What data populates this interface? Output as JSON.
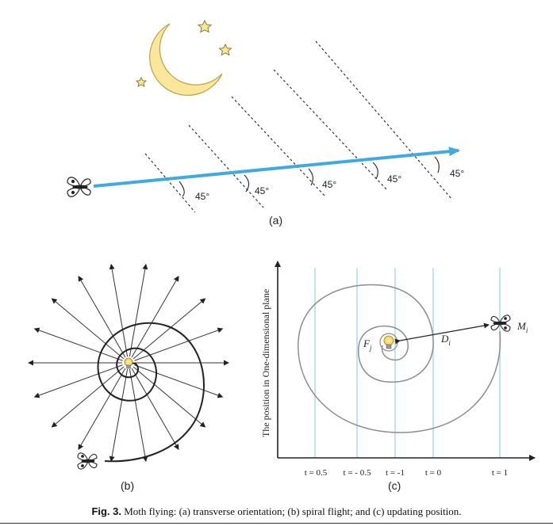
{
  "panel_a": {
    "angles": [
      "45°",
      "45°",
      "45°",
      "45°",
      "45°"
    ],
    "label": "(a)"
  },
  "panel_b": {
    "label": "(b)"
  },
  "panel_c": {
    "y_axis_label": "The position in One-dimensional plane",
    "ticks": [
      "t = 0.5",
      "t = - 0.5",
      "t = -1",
      "t = 0",
      "t = 1"
    ],
    "flame_label": "F",
    "flame_sub": "j",
    "distance_label": "D",
    "distance_sub": "i",
    "moth_label": "M",
    "moth_sub": "i",
    "label": "(c)"
  },
  "caption": {
    "prefix": "Fig. 3.",
    "text": " Moth flying: (a) transverse orientation; (b) spiral flight; and (c) updating position."
  },
  "colors": {
    "arrow_blue": "#3fa9e0",
    "moon_yellow": "#fbe79a",
    "grid_blue": "#9fd6e8"
  }
}
